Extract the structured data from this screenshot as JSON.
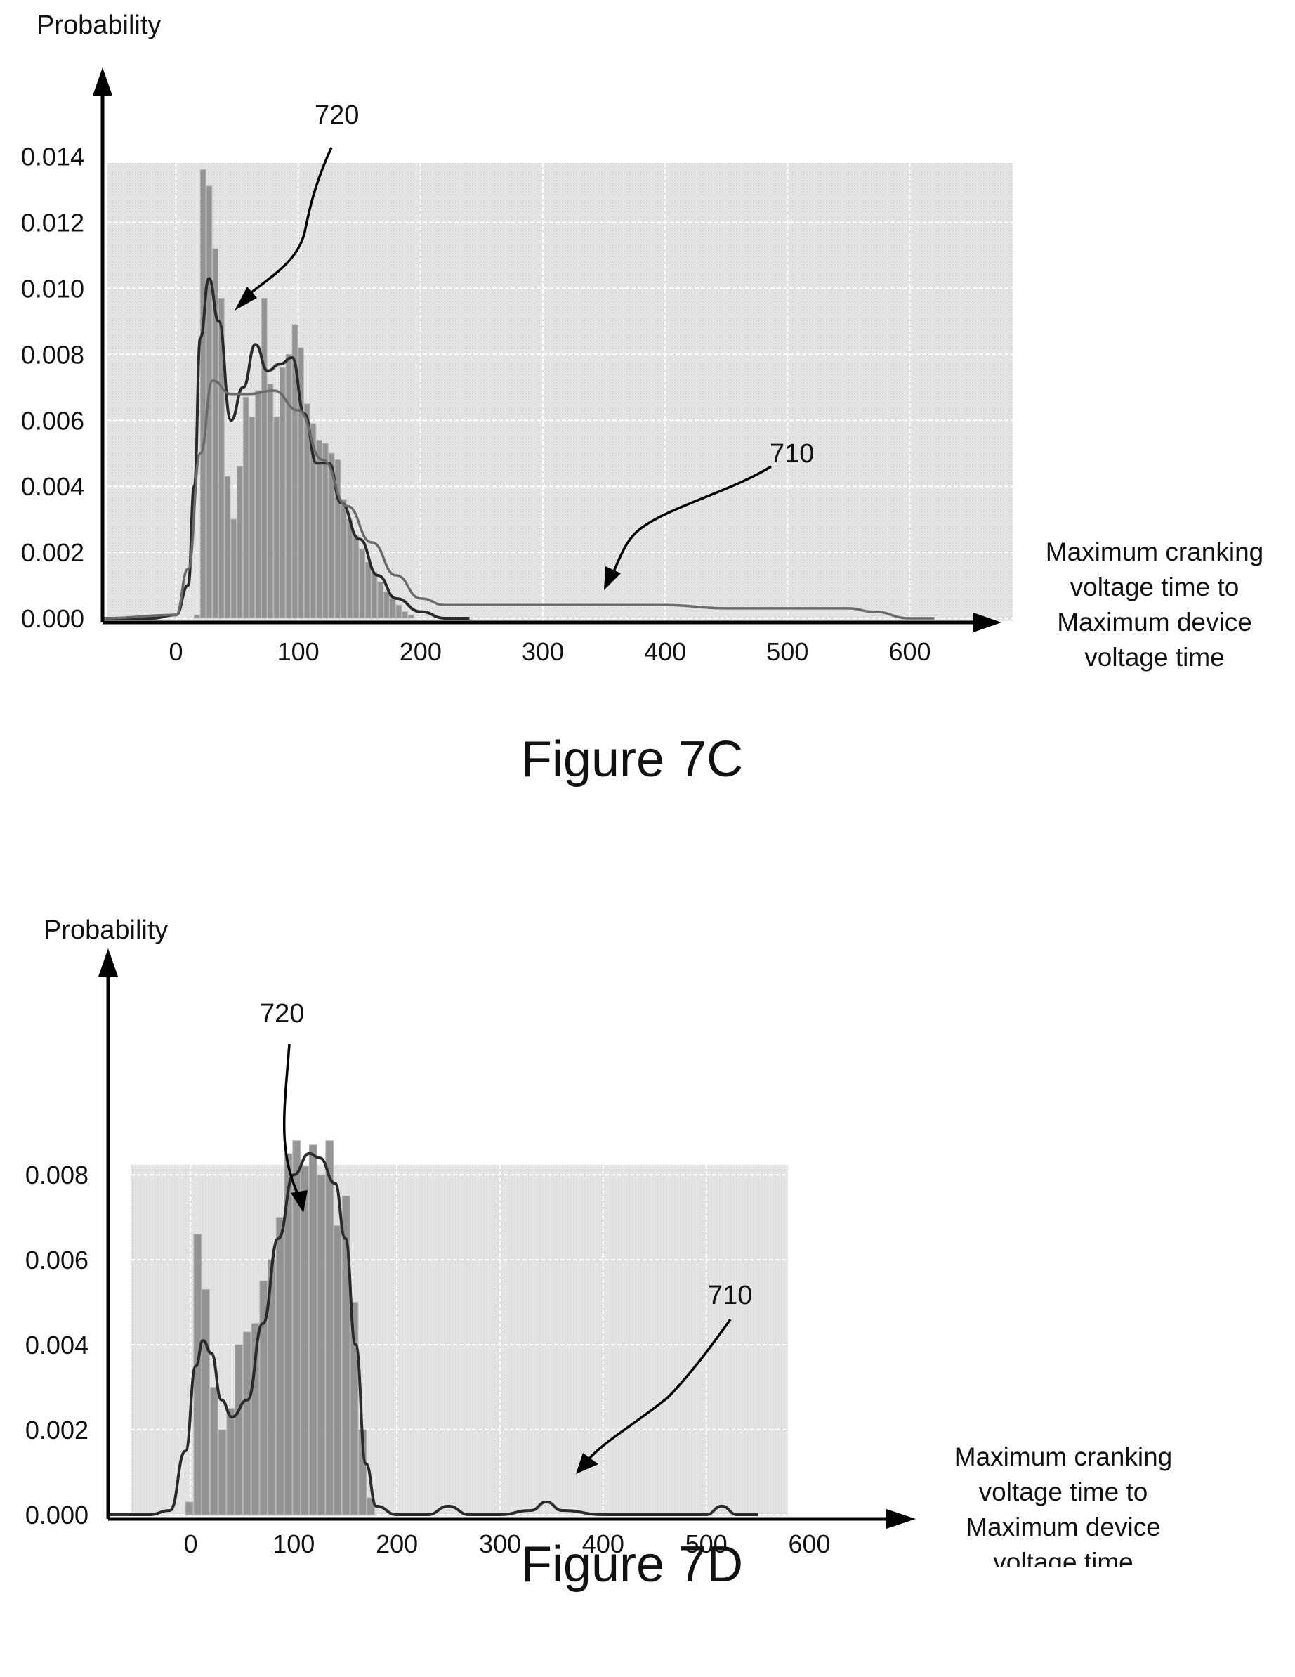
{
  "figures": [
    {
      "caption": "Figure 7C",
      "ylabel": "Probability",
      "xlabel_lines": [
        "Maximum cranking",
        "voltage time to",
        "Maximum device",
        "voltage time"
      ],
      "callout_720": "720",
      "callout_710": "710"
    },
    {
      "caption": "Figure 7D",
      "ylabel": "Probability",
      "xlabel_lines": [
        "Maximum cranking",
        "voltage time to",
        "Maximum device",
        "voltage time"
      ],
      "callout_720": "720",
      "callout_710": "710"
    }
  ],
  "chart_data": [
    {
      "type": "bar",
      "title": "",
      "ylabel": "Probability",
      "xlabel": "Maximum cranking voltage time to Maximum device voltage time",
      "xlim": [
        -60,
        660
      ],
      "ylim": [
        0,
        0.0138
      ],
      "x_ticks": [
        "0",
        "100",
        "200",
        "300",
        "400",
        "500",
        "600"
      ],
      "y_ticks": [
        "0.000",
        "0.002",
        "0.004",
        "0.006",
        "0.008",
        "0.010",
        "0.012",
        "0.014"
      ],
      "grid": true,
      "bin_width": 5,
      "bins": [
        {
          "x": 15,
          "y": 0.0001
        },
        {
          "x": 20,
          "y": 0.0136
        },
        {
          "x": 25,
          "y": 0.0131
        },
        {
          "x": 30,
          "y": 0.0112
        },
        {
          "x": 35,
          "y": 0.0097
        },
        {
          "x": 40,
          "y": 0.0043
        },
        {
          "x": 45,
          "y": 0.003
        },
        {
          "x": 50,
          "y": 0.0046
        },
        {
          "x": 55,
          "y": 0.0067
        },
        {
          "x": 60,
          "y": 0.0061
        },
        {
          "x": 65,
          "y": 0.0069
        },
        {
          "x": 70,
          "y": 0.0097
        },
        {
          "x": 75,
          "y": 0.0071
        },
        {
          "x": 80,
          "y": 0.0061
        },
        {
          "x": 85,
          "y": 0.0076
        },
        {
          "x": 90,
          "y": 0.008
        },
        {
          "x": 95,
          "y": 0.0089
        },
        {
          "x": 100,
          "y": 0.0082
        },
        {
          "x": 105,
          "y": 0.0065
        },
        {
          "x": 110,
          "y": 0.0059
        },
        {
          "x": 115,
          "y": 0.0054
        },
        {
          "x": 120,
          "y": 0.0053
        },
        {
          "x": 125,
          "y": 0.005
        },
        {
          "x": 130,
          "y": 0.0048
        },
        {
          "x": 135,
          "y": 0.0036
        },
        {
          "x": 140,
          "y": 0.003
        },
        {
          "x": 145,
          "y": 0.0025
        },
        {
          "x": 150,
          "y": 0.0021
        },
        {
          "x": 155,
          "y": 0.0017
        },
        {
          "x": 160,
          "y": 0.0014
        },
        {
          "x": 165,
          "y": 0.0011
        },
        {
          "x": 170,
          "y": 0.0008
        },
        {
          "x": 175,
          "y": 0.0006
        },
        {
          "x": 180,
          "y": 0.0004
        },
        {
          "x": 185,
          "y": 0.0002
        },
        {
          "x": 190,
          "y": 0.0001
        }
      ],
      "series": [
        {
          "name": "720",
          "x": [
            -60,
            -20,
            0,
            10,
            15,
            20,
            27,
            35,
            45,
            55,
            65,
            75,
            85,
            95,
            105,
            115,
            125,
            135,
            150,
            165,
            180,
            200,
            220,
            240
          ],
          "y": [
            0,
            0.0,
            0.0001,
            0.001,
            0.004,
            0.0085,
            0.0103,
            0.009,
            0.006,
            0.007,
            0.0083,
            0.0075,
            0.0077,
            0.0079,
            0.0062,
            0.0047,
            0.0047,
            0.0035,
            0.0024,
            0.0013,
            0.0006,
            0.0002,
            0.0,
            0.0
          ]
        },
        {
          "name": "710",
          "x": [
            -60,
            0,
            10,
            20,
            30,
            45,
            60,
            80,
            100,
            120,
            140,
            160,
            180,
            200,
            220,
            250,
            300,
            350,
            400,
            450,
            500,
            550,
            570,
            600,
            620
          ],
          "y": [
            0,
            0.0001,
            0.0015,
            0.005,
            0.0072,
            0.0068,
            0.0068,
            0.0069,
            0.0063,
            0.0048,
            0.0034,
            0.0023,
            0.0013,
            0.0006,
            0.0004,
            0.0004,
            0.0004,
            0.0004,
            0.0004,
            0.0003,
            0.0003,
            0.0003,
            0.0002,
            0.0,
            0.0
          ]
        }
      ]
    },
    {
      "type": "bar",
      "title": "",
      "ylabel": "Probability",
      "xlabel": "Maximum cranking voltage time to Maximum device voltage time",
      "xlim": [
        -80,
        680
      ],
      "ylim": [
        0,
        0.0083
      ],
      "x_ticks": [
        "0",
        "100",
        "200",
        "300",
        "400",
        "500",
        "600"
      ],
      "y_ticks": [
        "0.000",
        "0.002",
        "0.004",
        "0.006",
        "0.008"
      ],
      "grid": true,
      "bin_width": 8,
      "bins": [
        {
          "x": -5,
          "y": 0.0003
        },
        {
          "x": 3,
          "y": 0.0066
        },
        {
          "x": 11,
          "y": 0.0053
        },
        {
          "x": 19,
          "y": 0.003
        },
        {
          "x": 27,
          "y": 0.002
        },
        {
          "x": 35,
          "y": 0.0025
        },
        {
          "x": 43,
          "y": 0.004
        },
        {
          "x": 51,
          "y": 0.0043
        },
        {
          "x": 59,
          "y": 0.0045
        },
        {
          "x": 67,
          "y": 0.0055
        },
        {
          "x": 75,
          "y": 0.006
        },
        {
          "x": 83,
          "y": 0.007
        },
        {
          "x": 91,
          "y": 0.0085
        },
        {
          "x": 99,
          "y": 0.0088
        },
        {
          "x": 107,
          "y": 0.0082
        },
        {
          "x": 115,
          "y": 0.0087
        },
        {
          "x": 123,
          "y": 0.008
        },
        {
          "x": 131,
          "y": 0.0088
        },
        {
          "x": 139,
          "y": 0.0068
        },
        {
          "x": 147,
          "y": 0.0075
        },
        {
          "x": 155,
          "y": 0.005
        },
        {
          "x": 163,
          "y": 0.002
        },
        {
          "x": 171,
          "y": 0.0004
        }
      ],
      "series": [
        {
          "name": "720",
          "x": [
            -80,
            -40,
            -20,
            -5,
            5,
            12,
            20,
            30,
            40,
            55,
            70,
            85,
            100,
            115,
            125,
            140,
            150,
            160,
            170,
            180,
            200,
            230,
            250,
            270,
            300,
            330,
            345,
            360,
            400,
            450,
            500,
            515,
            530,
            550
          ],
          "y": [
            0,
            0.0,
            0.0001,
            0.0015,
            0.0035,
            0.0041,
            0.0038,
            0.0027,
            0.0023,
            0.0027,
            0.0045,
            0.0065,
            0.008,
            0.0085,
            0.0084,
            0.0078,
            0.0065,
            0.004,
            0.0012,
            0.0002,
            0.0,
            0.0,
            0.0002,
            0.0,
            0.0,
            0.0001,
            0.0003,
            0.0001,
            0.0,
            0.0,
            0.0,
            0.0002,
            0.0,
            0.0
          ]
        }
      ]
    }
  ]
}
